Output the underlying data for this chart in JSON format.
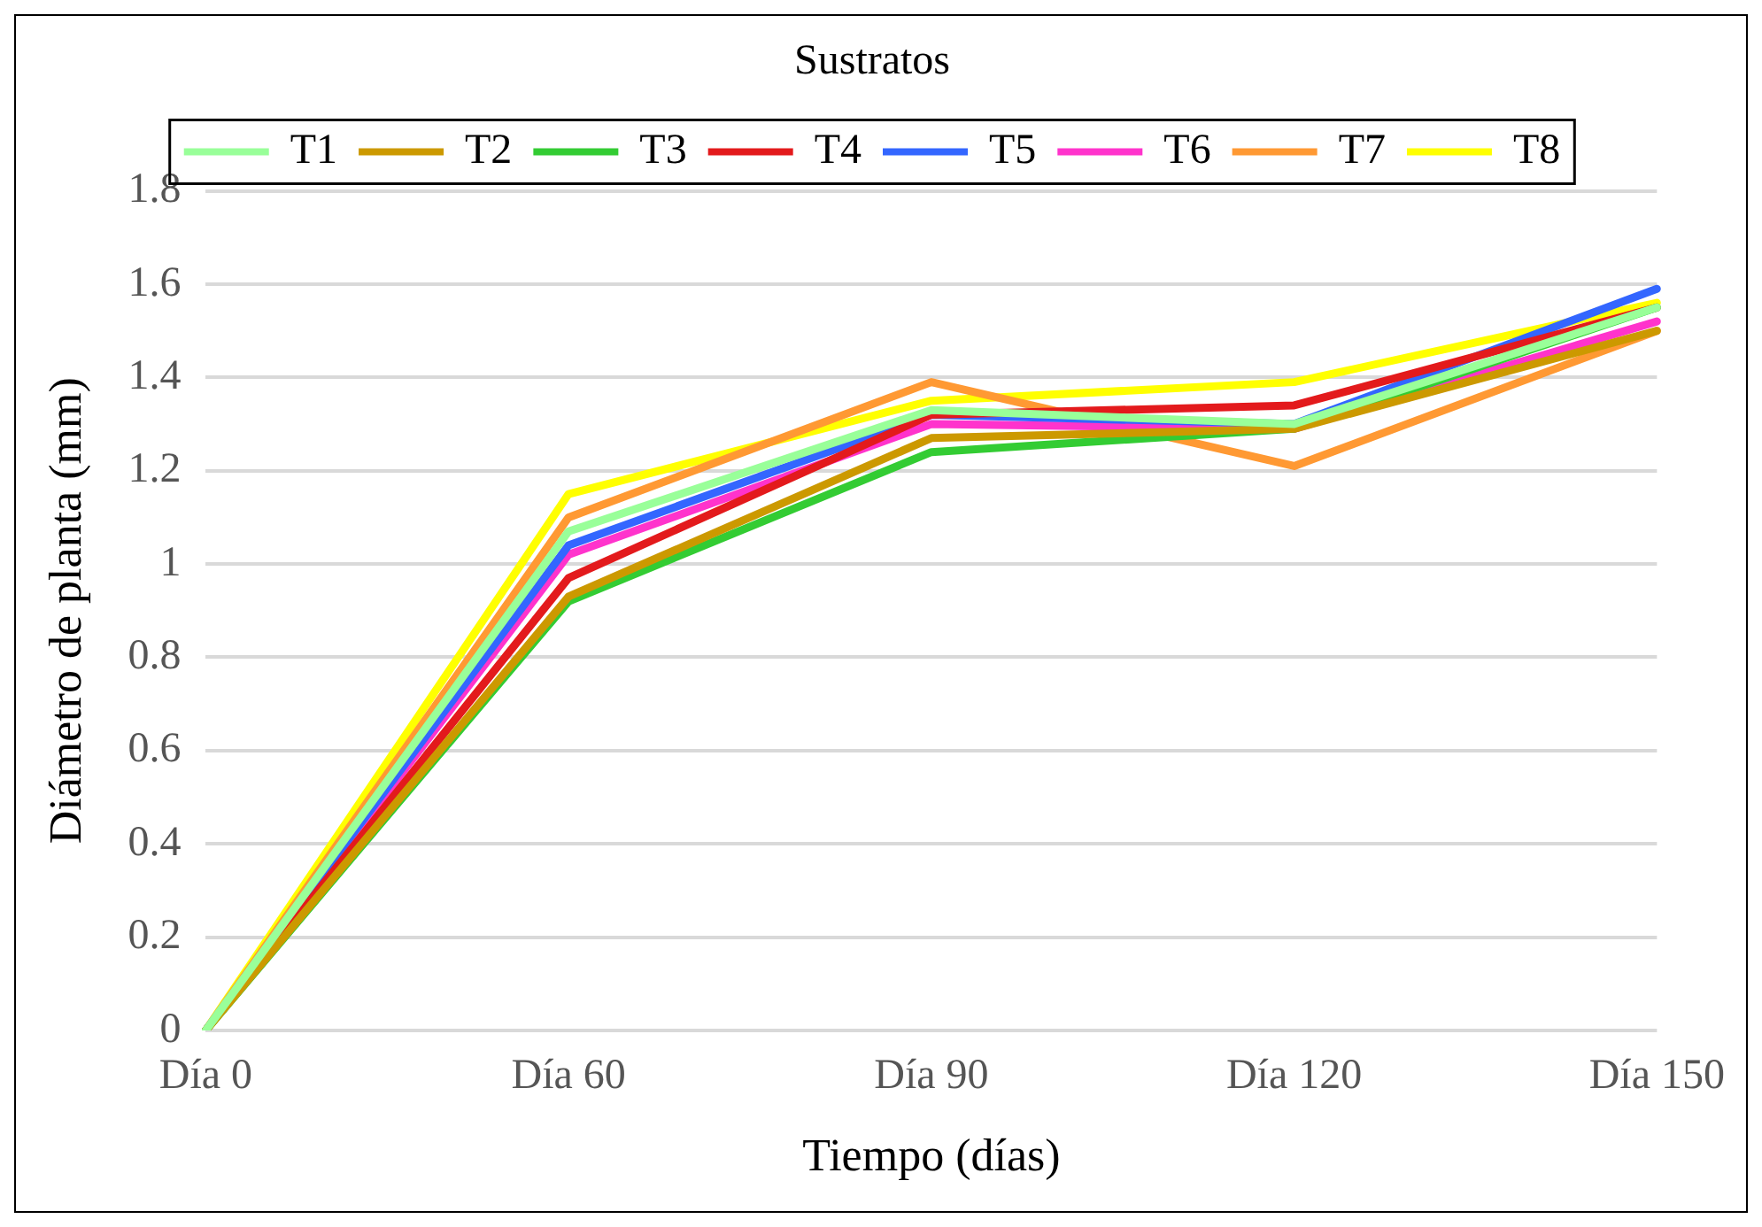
{
  "chart_data": {
    "type": "line",
    "xlabel": "Tiempo (días)",
    "ylabel": "Diámetro de planta (mm)",
    "legend_title": "Sustratos",
    "legend": "top",
    "grid": "y",
    "marker": "none",
    "line_style": "solid",
    "categories": [
      "Día 0",
      "Día 60",
      "Día 90",
      "Día 120",
      "Día 150"
    ],
    "ylim": [
      0,
      1.8
    ],
    "yticks": [
      0,
      0.2,
      0.4,
      0.6,
      0.8,
      1,
      1.2,
      1.4,
      1.6,
      1.8
    ],
    "series": [
      {
        "name": "T1",
        "color": "#99ff99",
        "values": [
          0,
          1.07,
          1.33,
          1.3,
          1.55
        ]
      },
      {
        "name": "T2",
        "color": "#cc9900",
        "values": [
          0,
          0.93,
          1.27,
          1.29,
          1.5
        ]
      },
      {
        "name": "T3",
        "color": "#33cc33",
        "values": [
          0,
          0.92,
          1.24,
          1.29,
          1.55
        ]
      },
      {
        "name": "T4",
        "color": "#e31a1c",
        "values": [
          0,
          0.97,
          1.32,
          1.34,
          1.55
        ]
      },
      {
        "name": "T5",
        "color": "#3366ff",
        "values": [
          0,
          1.04,
          1.32,
          1.3,
          1.59
        ]
      },
      {
        "name": "T6",
        "color": "#ff33cc",
        "values": [
          0,
          1.02,
          1.3,
          1.29,
          1.52
        ]
      },
      {
        "name": "T7",
        "color": "#ff9933",
        "values": [
          0,
          1.1,
          1.39,
          1.21,
          1.5
        ]
      },
      {
        "name": "T8",
        "color": "#ffff00",
        "values": [
          0,
          1.15,
          1.35,
          1.39,
          1.56
        ]
      }
    ]
  }
}
